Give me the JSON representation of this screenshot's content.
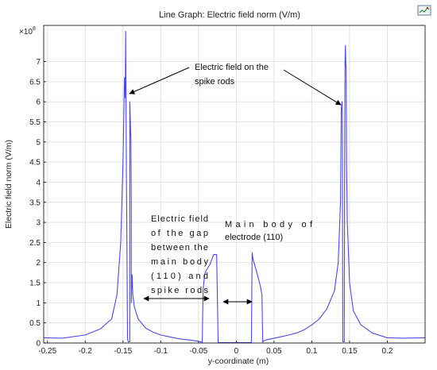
{
  "chart_data": {
    "type": "line",
    "title": "Line Graph: Electric field norm (V/m)",
    "xlabel": "y-coordinate (m)",
    "ylabel": "Electric field norm (V/m)",
    "y_multiplier": "×10",
    "y_multiplier_exp": "8",
    "xlim": [
      -0.255,
      0.25
    ],
    "ylim": [
      0,
      7.9
    ],
    "xticks": [
      -0.25,
      -0.2,
      -0.15,
      -0.1,
      -0.05,
      0,
      0.05,
      0.1,
      0.15,
      0.2
    ],
    "xtick_labels": [
      "-0.25",
      "-0.2",
      "-0.15",
      "-0.1",
      "-0.05",
      "0",
      "0.05",
      "0.1",
      "0.15",
      "0.2"
    ],
    "yticks": [
      0,
      0.5,
      1,
      1.5,
      2,
      2.5,
      3,
      3.5,
      4,
      4.5,
      5,
      5.5,
      6,
      6.5,
      7
    ],
    "ytick_labels": [
      "0",
      "0.5",
      "1",
      "1.5",
      "2",
      "2.5",
      "3",
      "3.5",
      "4",
      "4.5",
      "5",
      "5.5",
      "6",
      "6.5",
      "7"
    ],
    "grid": true,
    "series": [
      {
        "color": "#4a4ae6",
        "x": [
          -0.255,
          -0.23,
          -0.2,
          -0.18,
          -0.165,
          -0.158,
          -0.153,
          -0.15,
          -0.148,
          -0.147,
          -0.1465,
          -0.146,
          -0.1455,
          -0.145,
          -0.144,
          -0.143,
          -0.142,
          -0.141,
          -0.141,
          -0.1395,
          -0.139,
          -0.139,
          -0.1385,
          -0.138,
          -0.137,
          -0.135,
          -0.13,
          -0.12,
          -0.11,
          -0.1,
          -0.09,
          -0.08,
          -0.07,
          -0.06,
          -0.05,
          -0.045,
          -0.044,
          -0.043,
          -0.042,
          -0.04,
          -0.035,
          -0.03,
          -0.026,
          -0.024,
          -0.023,
          -0.023,
          -0.022,
          -0.02,
          -0.01,
          0,
          0.01,
          0.018,
          0.02,
          0.021,
          0.022,
          0.025,
          0.028,
          0.03,
          0.032,
          0.034,
          0.035,
          0.036,
          0.04,
          0.05,
          0.06,
          0.07,
          0.08,
          0.09,
          0.1,
          0.11,
          0.12,
          0.13,
          0.135,
          0.138,
          0.139,
          0.14,
          0.1405,
          0.141,
          0.141,
          0.142,
          0.143,
          0.1435,
          0.144,
          0.1445,
          0.145,
          0.1455,
          0.146,
          0.147,
          0.15,
          0.155,
          0.165,
          0.18,
          0.2,
          0.22,
          0.25
        ],
        "y": [
          0.13,
          0.12,
          0.2,
          0.35,
          0.6,
          1.2,
          2.5,
          4.5,
          6.6,
          6.1,
          7.75,
          6.0,
          4.2,
          3.0,
          0.1,
          0.03,
          0.03,
          0.03,
          6.0,
          5.0,
          3.5,
          1.0,
          1.4,
          1.7,
          1.2,
          0.9,
          0.6,
          0.37,
          0.27,
          0.2,
          0.16,
          0.12,
          0.09,
          0.07,
          0.04,
          0.02,
          1.3,
          1.5,
          1.7,
          1.8,
          1.95,
          2.2,
          2.2,
          0.02,
          0.01,
          0.01,
          0.01,
          0.01,
          0.01,
          0.01,
          0.01,
          0.01,
          0.01,
          2.25,
          2.1,
          1.9,
          1.7,
          1.55,
          1.4,
          1.2,
          0.02,
          0.05,
          0.08,
          0.12,
          0.16,
          0.2,
          0.25,
          0.33,
          0.45,
          0.6,
          0.85,
          1.3,
          2.0,
          3.5,
          5.8,
          6.0,
          5.6,
          0.06,
          0.03,
          0.03,
          0.03,
          4.5,
          7.0,
          7.4,
          7.0,
          6.8,
          4.5,
          3.0,
          1.5,
          0.8,
          0.45,
          0.25,
          0.13,
          0.12,
          0.13
        ]
      }
    ],
    "annotations": [
      "Electric field on the",
      "spike rods",
      "Electric field",
      "of the gap",
      "between the",
      "main body",
      "(110) and",
      "spike rods",
      "Main body of",
      "electrode (110)"
    ]
  },
  "icons": {
    "toolbar": "chart-export-icon"
  }
}
